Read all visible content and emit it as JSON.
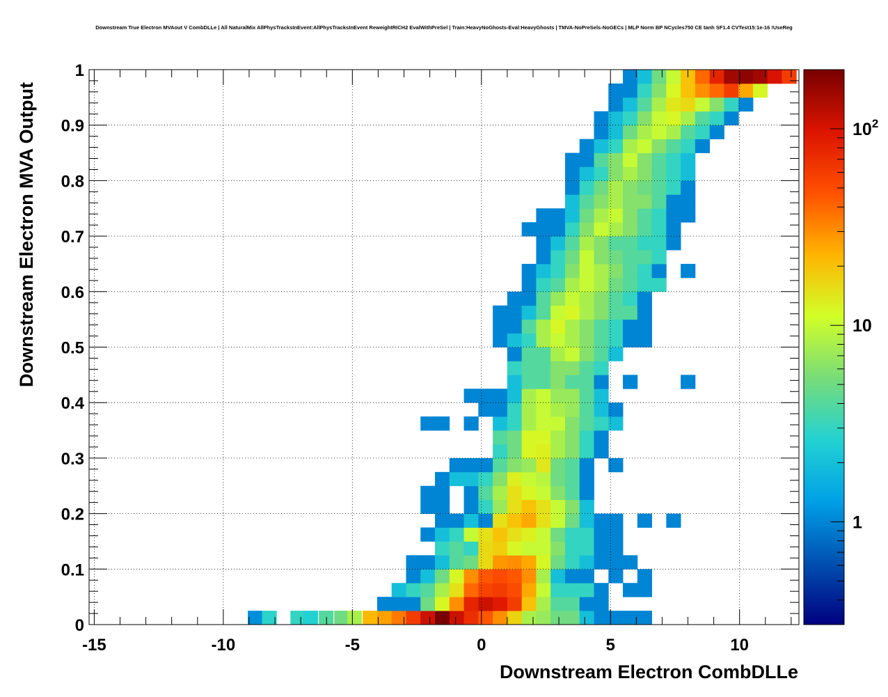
{
  "chart_data": {
    "type": "heatmap",
    "title": "Downstream True Electron MVAout V CombDLLe | All NaturalMix AllPhysTracksInEvent:AllPhysTracksInEvent ReweightRICH2 EvalWithPreSel | Train:HeavyNoGhosts-Eval:HeavyGhosts | TMVA-NoPreSels-NoGECs | MLP Norm BP NCycles750 CE tanh SF1.4 CVTest15:1e-16 !UseReg",
    "xlabel": "Downstream Electron CombDLLe",
    "ylabel": "Downstream Electron MVA Output",
    "xlim": [
      -15.2,
      12.3
    ],
    "ylim": [
      0,
      1
    ],
    "xticks": [
      {
        "v": -15,
        "label": "-15"
      },
      {
        "v": -10,
        "label": "-10"
      },
      {
        "v": -5,
        "label": "-5"
      },
      {
        "v": 0,
        "label": "0"
      },
      {
        "v": 5,
        "label": "5"
      },
      {
        "v": 10,
        "label": "10"
      }
    ],
    "yticks": [
      {
        "v": 0,
        "label": "0"
      },
      {
        "v": 0.1,
        "label": "0.1"
      },
      {
        "v": 0.2,
        "label": "0.2"
      },
      {
        "v": 0.3,
        "label": "0.3"
      },
      {
        "v": 0.4,
        "label": "0.4"
      },
      {
        "v": 0.5,
        "label": "0.5"
      },
      {
        "v": 0.6,
        "label": "0.6"
      },
      {
        "v": 0.7,
        "label": "0.7"
      },
      {
        "v": 0.8,
        "label": "0.8"
      },
      {
        "v": 0.9,
        "label": "0.9"
      },
      {
        "v": 1,
        "label": "1"
      }
    ],
    "grid": true,
    "log_z": true,
    "zlim": [
      0.3,
      200
    ],
    "colorbar": {
      "labels": [
        {
          "v": 1,
          "text": "1"
        },
        {
          "v": 10,
          "text": "10"
        },
        {
          "v": 100,
          "text": "10",
          "sup": "2"
        }
      ],
      "stops": [
        "#00007f",
        "#0050b0",
        "#00a0e6",
        "#23d2d2",
        "#78dc78",
        "#d2ff28",
        "#ffb400",
        "#ff5000",
        "#dc1400",
        "#780000"
      ]
    },
    "bins": {
      "x0": -4.6,
      "dx": 0.56,
      "y0": 0.0,
      "dy": 0.025,
      "extra": [
        [
          -9.05,
          0,
          1.1
        ],
        [
          -8.5,
          0,
          2.8
        ],
        [
          -7.4,
          0,
          3
        ],
        [
          -6.9,
          0,
          2.6
        ],
        [
          -6.3,
          0,
          4
        ],
        [
          -5.7,
          0,
          5
        ],
        [
          -5.2,
          0,
          8
        ]
      ],
      "counts": [
        [
          22,
          26,
          35,
          60,
          110,
          200,
          110,
          70,
          45,
          30,
          17,
          8,
          7,
          5,
          5,
          2,
          1,
          1,
          1,
          1,
          0,
          0,
          0,
          0,
          0,
          0,
          0,
          0,
          0,
          0
        ],
        [
          0,
          1,
          1,
          1,
          5,
          12,
          30,
          80,
          110,
          90,
          60,
          20,
          8,
          4,
          4,
          1,
          1,
          0,
          0,
          0,
          0,
          0,
          0,
          0,
          0,
          0,
          0,
          0,
          0,
          0
        ],
        [
          0,
          0,
          2,
          3,
          4,
          8,
          15,
          40,
          55,
          60,
          50,
          25,
          10,
          3,
          3,
          3,
          1,
          0,
          1,
          1,
          0,
          0,
          0,
          0,
          0,
          0,
          0,
          0,
          0,
          0
        ],
        [
          0,
          0,
          0,
          1,
          2,
          5,
          12,
          30,
          45,
          50,
          45,
          30,
          8,
          2,
          1,
          1,
          0,
          1,
          0,
          1,
          0,
          0,
          0,
          0,
          0,
          0,
          0,
          0,
          0,
          0
        ],
        [
          0,
          0,
          0,
          1,
          1,
          2,
          4,
          5,
          16,
          28,
          30,
          25,
          12,
          5,
          3,
          2,
          1,
          1,
          1,
          0,
          0,
          0,
          0,
          0,
          0,
          0,
          0,
          0,
          0,
          0
        ],
        [
          0,
          0,
          0,
          0,
          0,
          3,
          4,
          3,
          16,
          18,
          12,
          10,
          10,
          6,
          3,
          3,
          1,
          1,
          0,
          0,
          0,
          0,
          0,
          0,
          0,
          0,
          0,
          0,
          0,
          0
        ],
        [
          0,
          0,
          0,
          0,
          1,
          2,
          3,
          10,
          15,
          20,
          15,
          13,
          10,
          5,
          3,
          3,
          1,
          1,
          0,
          0,
          0,
          0,
          0,
          0,
          0,
          0,
          0,
          0,
          0,
          0
        ],
        [
          0,
          0,
          0,
          0,
          0,
          1,
          1,
          2,
          1,
          15,
          20,
          25,
          15,
          10,
          5,
          2,
          1,
          1,
          0,
          1,
          0,
          1,
          0,
          0,
          0,
          0,
          0,
          0,
          0,
          0
        ],
        [
          0,
          0,
          0,
          0,
          1,
          1,
          0,
          1,
          3,
          7,
          15,
          20,
          15,
          10,
          6,
          2,
          0,
          0,
          0,
          0,
          0,
          0,
          0,
          0,
          0,
          0,
          0,
          0,
          0,
          0
        ],
        [
          0,
          0,
          0,
          0,
          1,
          1,
          0,
          1,
          4,
          8,
          15,
          12,
          10,
          6,
          4,
          1,
          0,
          0,
          0,
          0,
          0,
          0,
          0,
          0,
          0,
          0,
          0,
          0,
          0,
          0
        ],
        [
          0,
          0,
          0,
          0,
          0,
          1,
          2,
          2,
          3,
          6,
          13,
          10,
          9,
          5,
          4,
          1,
          0,
          0,
          0,
          0,
          0,
          0,
          0,
          0,
          0,
          0,
          0,
          0,
          0,
          0
        ],
        [
          0,
          0,
          0,
          0,
          0,
          0,
          1,
          1,
          1,
          4,
          6,
          7,
          14,
          5,
          4,
          1,
          0,
          1,
          0,
          0,
          0,
          0,
          0,
          0,
          0,
          0,
          0,
          0,
          0,
          0
        ],
        [
          0,
          0,
          0,
          0,
          0,
          0,
          0,
          0,
          0,
          3,
          5,
          12,
          13,
          8,
          6,
          3,
          1,
          0,
          0,
          0,
          0,
          0,
          0,
          0,
          0,
          0,
          0,
          0,
          0,
          0
        ],
        [
          0,
          0,
          0,
          0,
          0,
          0,
          0,
          0,
          0,
          4,
          5,
          12,
          12,
          8,
          6,
          3,
          1,
          0,
          0,
          0,
          0,
          0,
          0,
          0,
          0,
          0,
          0,
          0,
          0,
          0
        ],
        [
          0,
          0,
          0,
          0,
          1,
          1,
          0,
          1,
          0,
          2,
          3,
          8,
          10,
          10,
          6,
          4,
          3,
          2,
          0,
          0,
          0,
          0,
          0,
          0,
          0,
          0,
          0,
          0,
          0,
          0
        ],
        [
          0,
          0,
          0,
          0,
          0,
          0,
          0,
          0,
          1,
          1,
          3,
          8,
          10,
          8,
          7,
          4,
          2,
          1,
          0,
          0,
          0,
          0,
          0,
          0,
          0,
          0,
          0,
          0,
          0,
          0
        ],
        [
          0,
          0,
          0,
          0,
          0,
          0,
          0,
          1,
          1,
          1,
          2,
          8,
          10,
          7,
          7,
          4,
          2,
          0,
          0,
          0,
          0,
          0,
          0,
          0,
          0,
          0,
          0,
          0,
          0,
          0
        ],
        [
          0,
          0,
          0,
          0,
          0,
          0,
          0,
          0,
          0,
          0,
          2,
          4,
          4,
          6,
          4,
          4,
          1,
          0,
          1,
          0,
          0,
          0,
          1,
          0,
          0,
          0,
          0,
          0,
          0,
          0
        ],
        [
          0,
          0,
          0,
          0,
          0,
          0,
          0,
          0,
          0,
          0,
          3,
          4,
          4,
          6,
          6,
          4,
          3,
          0,
          0,
          0,
          0,
          0,
          0,
          0,
          0,
          0,
          0,
          0,
          0,
          0
        ],
        [
          0,
          0,
          0,
          0,
          0,
          0,
          0,
          0,
          0,
          0,
          1,
          4,
          4,
          8,
          10,
          6,
          4,
          2,
          0,
          0,
          0,
          0,
          0,
          0,
          0,
          0,
          0,
          0,
          0,
          0
        ],
        [
          0,
          0,
          0,
          0,
          0,
          0,
          0,
          0,
          0,
          1,
          2,
          3,
          8,
          10,
          8,
          6,
          4,
          3,
          1,
          1,
          0,
          0,
          0,
          0,
          0,
          0,
          0,
          0,
          0,
          0
        ],
        [
          0,
          0,
          0,
          0,
          0,
          0,
          0,
          0,
          0,
          1,
          1,
          4,
          8,
          12,
          8,
          6,
          4,
          3,
          1,
          1,
          0,
          0,
          0,
          0,
          0,
          0,
          0,
          0,
          0,
          0
        ],
        [
          0,
          0,
          0,
          0,
          0,
          0,
          0,
          0,
          0,
          1,
          1,
          2,
          4,
          10,
          12,
          8,
          6,
          4,
          4,
          1,
          0,
          0,
          0,
          0,
          0,
          0,
          0,
          0,
          0,
          0
        ],
        [
          0,
          0,
          0,
          0,
          0,
          0,
          0,
          0,
          0,
          0,
          1,
          1,
          4,
          7,
          10,
          8,
          6,
          4,
          3,
          1,
          0,
          0,
          0,
          0,
          0,
          0,
          0,
          0,
          0,
          0
        ],
        [
          0,
          0,
          0,
          0,
          0,
          0,
          0,
          0,
          0,
          0,
          0,
          1,
          3,
          4,
          8,
          10,
          8,
          5,
          4,
          3,
          3,
          0,
          0,
          0,
          0,
          0,
          0,
          0,
          0,
          0
        ],
        [
          0,
          0,
          0,
          0,
          0,
          0,
          0,
          0,
          0,
          0,
          0,
          1,
          2,
          3,
          6,
          10,
          8,
          6,
          4,
          3,
          1,
          0,
          1,
          0,
          0,
          0,
          0,
          0,
          0,
          0
        ],
        [
          0,
          0,
          0,
          0,
          0,
          0,
          0,
          0,
          0,
          0,
          0,
          0,
          1,
          3,
          5,
          10,
          6,
          5,
          4,
          4,
          3,
          0,
          0,
          0,
          0,
          0,
          0,
          0,
          0,
          0
        ],
        [
          0,
          0,
          0,
          0,
          0,
          0,
          0,
          0,
          0,
          0,
          0,
          0,
          1,
          2,
          4,
          8,
          6,
          4,
          4,
          3,
          3,
          1,
          0,
          0,
          0,
          0,
          0,
          0,
          0,
          0
        ],
        [
          0,
          0,
          0,
          0,
          0,
          0,
          0,
          0,
          0,
          0,
          0,
          1,
          1,
          1,
          3,
          6,
          10,
          8,
          6,
          4,
          3,
          1,
          0,
          0,
          0,
          0,
          0,
          0,
          0,
          0
        ],
        [
          0,
          0,
          0,
          0,
          0,
          0,
          0,
          0,
          0,
          0,
          0,
          0,
          1,
          1,
          2,
          5,
          8,
          10,
          6,
          4,
          3,
          1,
          1,
          0,
          0,
          0,
          0,
          0,
          0,
          0
        ],
        [
          0,
          0,
          0,
          0,
          0,
          0,
          0,
          0,
          0,
          0,
          0,
          0,
          0,
          0,
          2,
          4,
          6,
          8,
          6,
          6,
          4,
          1,
          1,
          0,
          0,
          0,
          0,
          0,
          0,
          0
        ],
        [
          0,
          0,
          0,
          0,
          0,
          0,
          0,
          0,
          0,
          0,
          0,
          0,
          0,
          0,
          1,
          3,
          5,
          8,
          6,
          5,
          4,
          3,
          1,
          0,
          0,
          0,
          0,
          0,
          0,
          0
        ],
        [
          0,
          0,
          0,
          0,
          0,
          0,
          0,
          0,
          0,
          0,
          0,
          0,
          0,
          0,
          1,
          2,
          3,
          6,
          8,
          6,
          4,
          3,
          2,
          0,
          0,
          0,
          0,
          0,
          0,
          0
        ],
        [
          0,
          0,
          0,
          0,
          0,
          0,
          0,
          0,
          0,
          0,
          0,
          0,
          0,
          0,
          1,
          1,
          4,
          6,
          10,
          6,
          4,
          3,
          2,
          0,
          0,
          0,
          0,
          0,
          0,
          0
        ],
        [
          0,
          0,
          0,
          0,
          0,
          0,
          0,
          0,
          0,
          0,
          0,
          0,
          0,
          0,
          0,
          1,
          2,
          3,
          8,
          10,
          6,
          4,
          3,
          1,
          0,
          0,
          0,
          0,
          0,
          0
        ],
        [
          0,
          0,
          0,
          0,
          0,
          0,
          0,
          0,
          0,
          0,
          0,
          0,
          0,
          0,
          0,
          0,
          1,
          2,
          5,
          8,
          10,
          8,
          4,
          3,
          1,
          0,
          0,
          0,
          0,
          0
        ],
        [
          0,
          0,
          0,
          0,
          0,
          0,
          0,
          0,
          0,
          0,
          0,
          0,
          0,
          0,
          0,
          0,
          1,
          2,
          3,
          6,
          10,
          12,
          8,
          4,
          3,
          1,
          0,
          0,
          0,
          0
        ],
        [
          0,
          0,
          0,
          0,
          0,
          0,
          0,
          0,
          0,
          0,
          0,
          0,
          0,
          0,
          0,
          0,
          0,
          1,
          2,
          4,
          8,
          14,
          16,
          10,
          6,
          3,
          1,
          0,
          0,
          0
        ],
        [
          0,
          0,
          0,
          0,
          0,
          0,
          0,
          0,
          0,
          0,
          0,
          0,
          0,
          0,
          0,
          0,
          0,
          1,
          1,
          3,
          6,
          12,
          20,
          30,
          40,
          60,
          25,
          12,
          0,
          0
        ],
        [
          0,
          0,
          0,
          0,
          0,
          0,
          0,
          0,
          0,
          0,
          0,
          0,
          0,
          0,
          0,
          0,
          0,
          0,
          1,
          2,
          5,
          10,
          20,
          40,
          80,
          150,
          170,
          150,
          100,
          60
        ]
      ]
    }
  }
}
